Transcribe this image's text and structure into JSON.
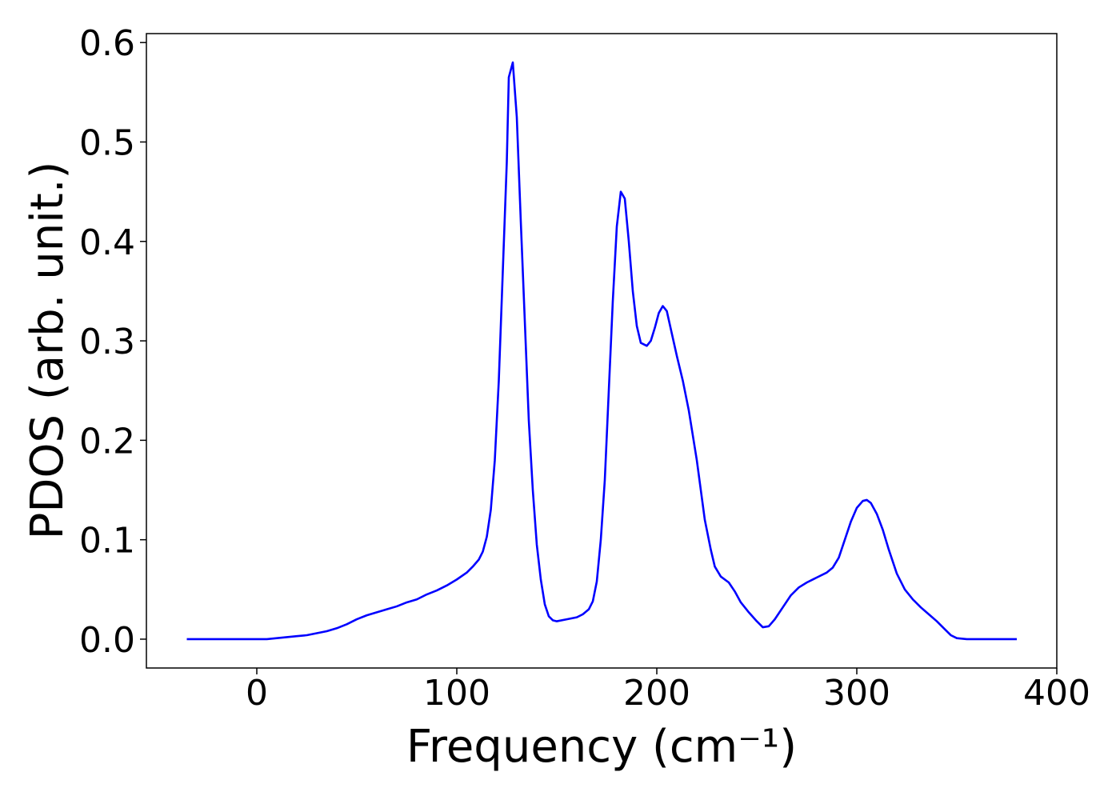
{
  "chart_data": {
    "type": "line",
    "x_label": "Frequency (cm⁻¹)",
    "y_label": "PDOS (arb. unit.)",
    "xlim": [
      -55.2,
      400
    ],
    "ylim": [
      -0.029,
      0.609
    ],
    "xticks": [
      0,
      100,
      200,
      300,
      400
    ],
    "yticks": [
      {
        "value": 0,
        "label": "0.0"
      },
      0.1,
      0.2,
      0.3,
      0.4,
      0.5,
      0.6
    ],
    "series": [
      {
        "color": "#0000ff",
        "x": [
          -35,
          0,
          5,
          10,
          15,
          20,
          25,
          30,
          35,
          40,
          45,
          50,
          55,
          60,
          65,
          70,
          75,
          80,
          85,
          90,
          95,
          100,
          105,
          108,
          111,
          113,
          115,
          117,
          119,
          121,
          123,
          125,
          126,
          128,
          130,
          132,
          134,
          136,
          138,
          140,
          142,
          144,
          146,
          148,
          150,
          155,
          160,
          163,
          166,
          168,
          170,
          172,
          174,
          176,
          178,
          180,
          182,
          184,
          186,
          188,
          190,
          192,
          195,
          197,
          199,
          201,
          203,
          205,
          207,
          210,
          213,
          216,
          220,
          224,
          227,
          229,
          232,
          236,
          239,
          242,
          246,
          250,
          253,
          256,
          259,
          263,
          267,
          271,
          275,
          280,
          285,
          288,
          291,
          294,
          297,
          300,
          303,
          305,
          307,
          310,
          313,
          316,
          320,
          324,
          328,
          332,
          336,
          340,
          344,
          347,
          350,
          355,
          380
        ],
        "values": [
          0,
          0,
          0,
          0.001,
          0.002,
          0.003,
          0.004,
          0.006,
          0.008,
          0.011,
          0.015,
          0.02,
          0.024,
          0.027,
          0.03,
          0.033,
          0.037,
          0.04,
          0.045,
          0.049,
          0.054,
          0.06,
          0.067,
          0.073,
          0.08,
          0.088,
          0.103,
          0.13,
          0.18,
          0.26,
          0.37,
          0.48,
          0.565,
          0.58,
          0.525,
          0.42,
          0.32,
          0.22,
          0.15,
          0.095,
          0.06,
          0.035,
          0.023,
          0.019,
          0.018,
          0.02,
          0.022,
          0.025,
          0.03,
          0.038,
          0.058,
          0.1,
          0.16,
          0.25,
          0.34,
          0.415,
          0.45,
          0.443,
          0.4,
          0.35,
          0.315,
          0.298,
          0.295,
          0.3,
          0.313,
          0.328,
          0.335,
          0.33,
          0.312,
          0.285,
          0.26,
          0.23,
          0.18,
          0.12,
          0.09,
          0.073,
          0.063,
          0.057,
          0.048,
          0.037,
          0.027,
          0.018,
          0.012,
          0.013,
          0.02,
          0.032,
          0.044,
          0.052,
          0.057,
          0.062,
          0.067,
          0.072,
          0.082,
          0.1,
          0.118,
          0.132,
          0.139,
          0.14,
          0.137,
          0.126,
          0.11,
          0.09,
          0.066,
          0.05,
          0.04,
          0.032,
          0.025,
          0.018,
          0.01,
          0.004,
          0.001,
          0,
          0
        ]
      }
    ]
  }
}
